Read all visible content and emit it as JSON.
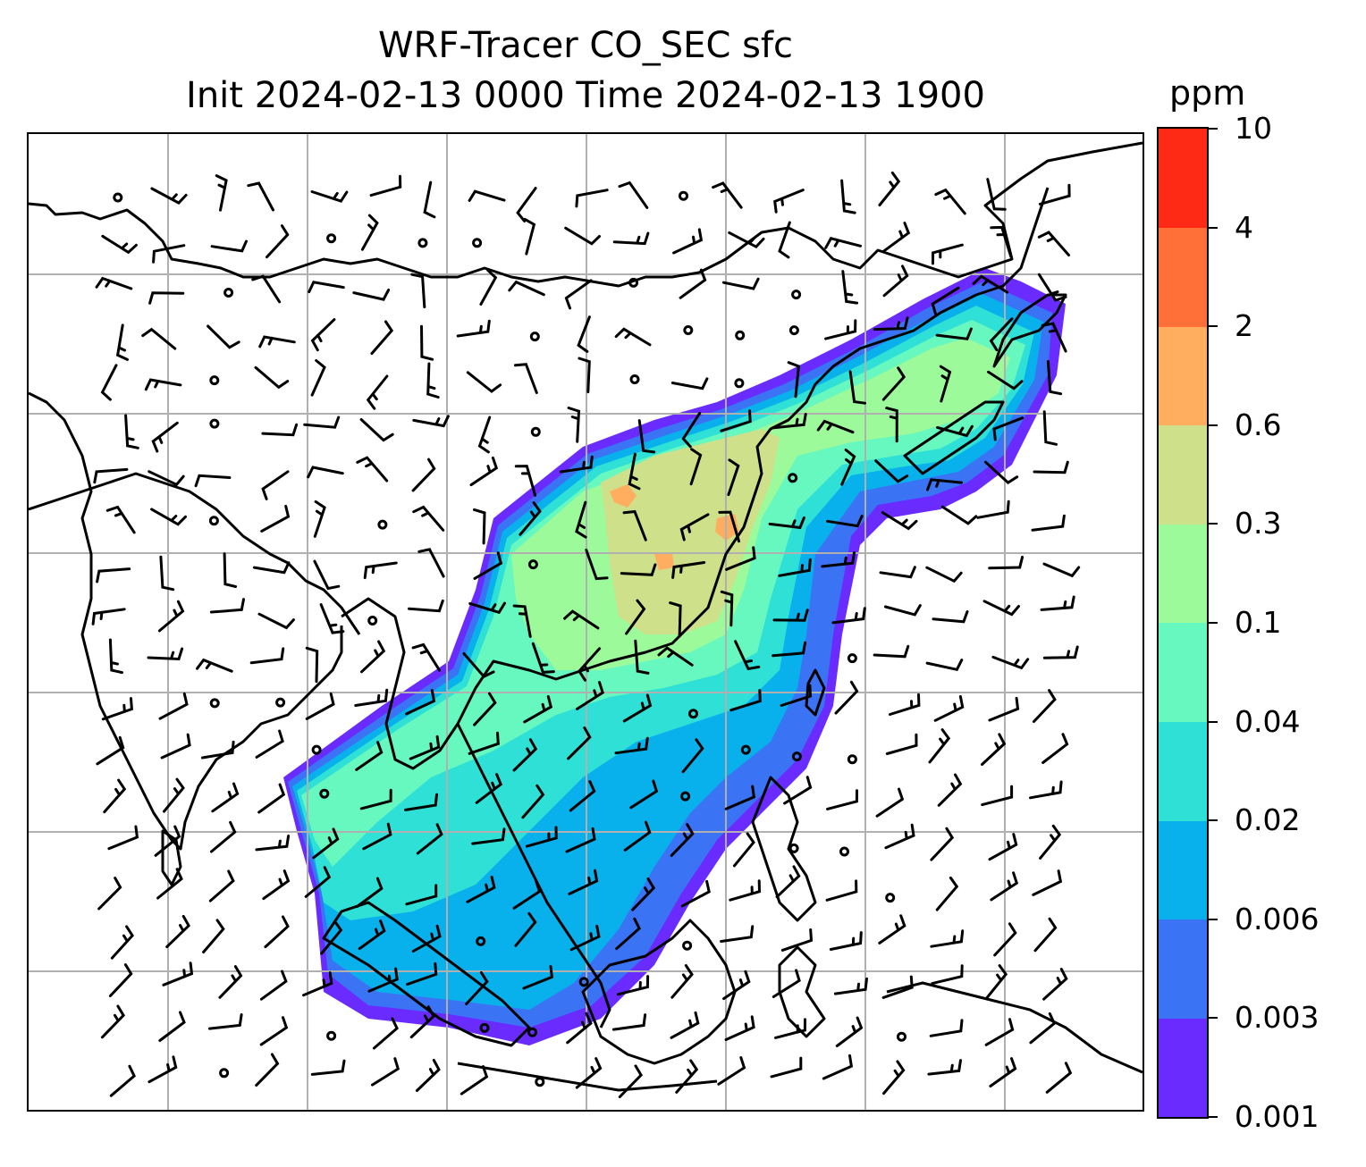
{
  "title": {
    "line1": "WRF-Tracer CO_SEC sfc",
    "line2": "Init 2024-02-13 0000 Time 2024-02-13 1900"
  },
  "colorbar": {
    "unit": "ppm",
    "levels": [
      "0.001",
      "0.003",
      "0.006",
      "0.02",
      "0.04",
      "0.1",
      "0.3",
      "0.6",
      "2",
      "4",
      "10"
    ],
    "colors": [
      "#6a2bff",
      "#3b73f5",
      "#08b0ec",
      "#2fe0d6",
      "#67f8c0",
      "#9dfa9a",
      "#cfe08a",
      "#ffae5f",
      "#ff7038",
      "#ff2a16"
    ]
  },
  "map": {
    "field": "CO_SEC tracer concentration, surface",
    "wind": "wind barbs",
    "coastline_color": "#000000",
    "grid_color": "#b0b0b0"
  }
}
